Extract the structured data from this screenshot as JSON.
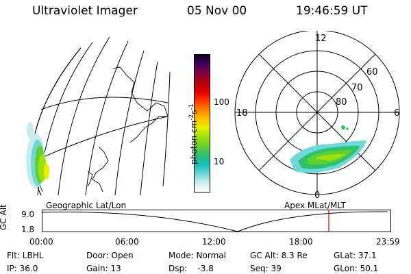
{
  "header": {
    "instrument": "Ultraviolet Imager",
    "date": "05 Nov 00",
    "time": "19:46:59 UT"
  },
  "colorbar": {
    "label": "photon cm",
    "label_exp1": "-2",
    "label_mid": "s",
    "label_exp2": "-1",
    "ticks": [
      "100",
      "10"
    ],
    "colors": [
      "#ffffff",
      "#c8ecec",
      "#70d8d8",
      "#10c0b8",
      "#30c070",
      "#60d030",
      "#a0e010",
      "#e8f000",
      "#ffc000",
      "#ff8000",
      "#ff3000",
      "#e00000",
      "#b00010",
      "#800040",
      "#400060",
      "#100020"
    ]
  },
  "polar": {
    "mlt_labels": {
      "top": "12",
      "left": "18",
      "right": "6",
      "bottom": "0"
    },
    "lat_labels": [
      "60",
      "70",
      "80"
    ]
  },
  "timeline": {
    "left_label": "Geographic Lat/Lon",
    "right_label": "Apex MLat/MLT",
    "axis_label": "GC Alt",
    "y_top": "9.0",
    "y_bottom": "1.8",
    "x_ticks": [
      "00:00",
      "06:00",
      "12:00",
      "18:00",
      "23:59"
    ]
  },
  "footer": {
    "row1": [
      "Flt: LBHL",
      "Door: Open",
      "Mode: Normal",
      "GC Alt: 8.3 Re",
      "GLat:  37.1"
    ],
    "row2": [
      "IP: 36.0",
      "Gain: 13",
      "Dsp:    -3.8",
      "Seq: 39",
      "GLon:  50.1"
    ]
  }
}
